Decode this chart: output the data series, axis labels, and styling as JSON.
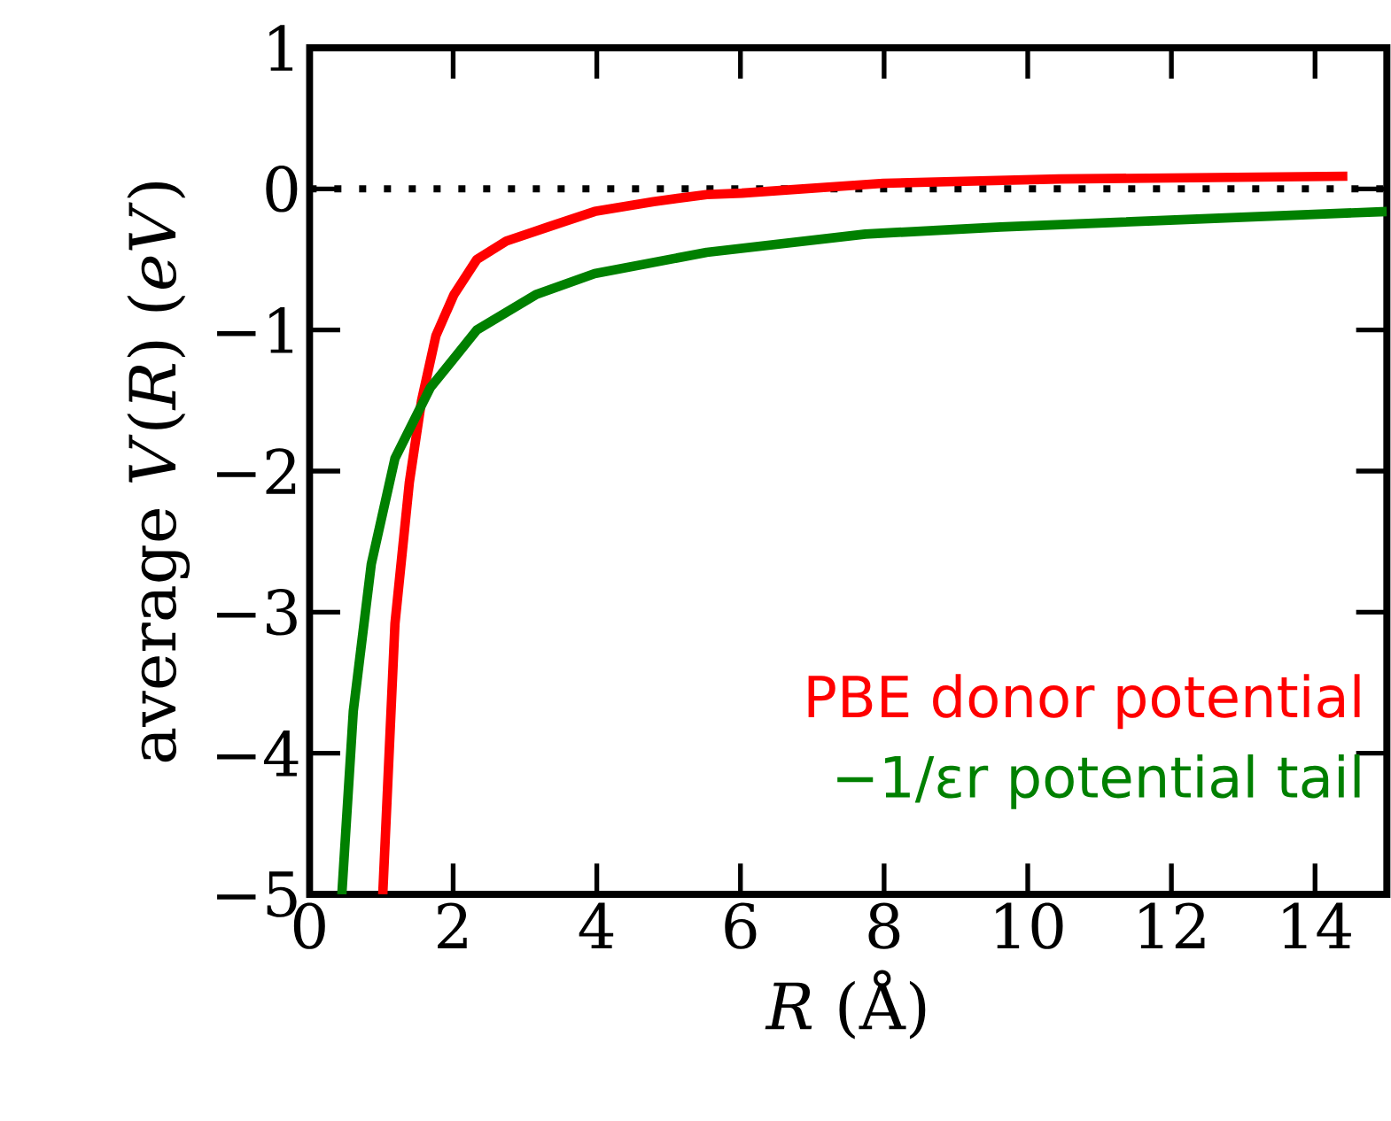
{
  "chart_data": {
    "type": "line",
    "xlabel": "*R* (Å)",
    "ylabel": "average *V*(*R*) (*eV*)",
    "xlim": [
      0,
      15
    ],
    "ylim": [
      -5,
      1
    ],
    "xticks": [
      0,
      2,
      4,
      6,
      8,
      10,
      12,
      14
    ],
    "yticks": [
      {
        "value": -5,
        "label": "−5"
      },
      {
        "value": -4,
        "label": "−4"
      },
      {
        "value": -3,
        "label": "−3"
      },
      {
        "value": -2,
        "label": "−2"
      },
      {
        "value": -1,
        "label": "−1"
      },
      0,
      1
    ],
    "grid": false,
    "legend": "bottom right",
    "ref_lines": [
      {
        "axis": "y",
        "value": 0,
        "color": "#000000",
        "line_style": "dotted"
      }
    ],
    "series": [
      {
        "name": "PBE donor potential",
        "color": "#ff0000",
        "x": [
          1.02,
          1.19,
          1.39,
          1.56,
          1.76,
          2.01,
          2.33,
          2.74,
          3.32,
          3.97,
          4.79,
          5.53,
          6.02,
          7.99,
          10.44,
          14.45
        ],
        "values": [
          -5,
          -3.08,
          -2.08,
          -1.5,
          -1.04,
          -0.75,
          -0.5,
          -0.37,
          -0.27,
          -0.16,
          -0.09,
          -0.04,
          -0.03,
          0.04,
          0.07,
          0.09
        ]
      },
      {
        "name": "−1/εr potential tail",
        "color": "#008000",
        "x": [
          0.45,
          0.61,
          0.86,
          1.19,
          1.68,
          2.33,
          3.15,
          3.97,
          5.53,
          7.74,
          9.62,
          15.0
        ],
        "values": [
          -5,
          -3.7,
          -2.66,
          -1.91,
          -1.41,
          -1.0,
          -0.75,
          -0.6,
          -0.45,
          -0.32,
          -0.27,
          -0.16
        ]
      }
    ]
  }
}
